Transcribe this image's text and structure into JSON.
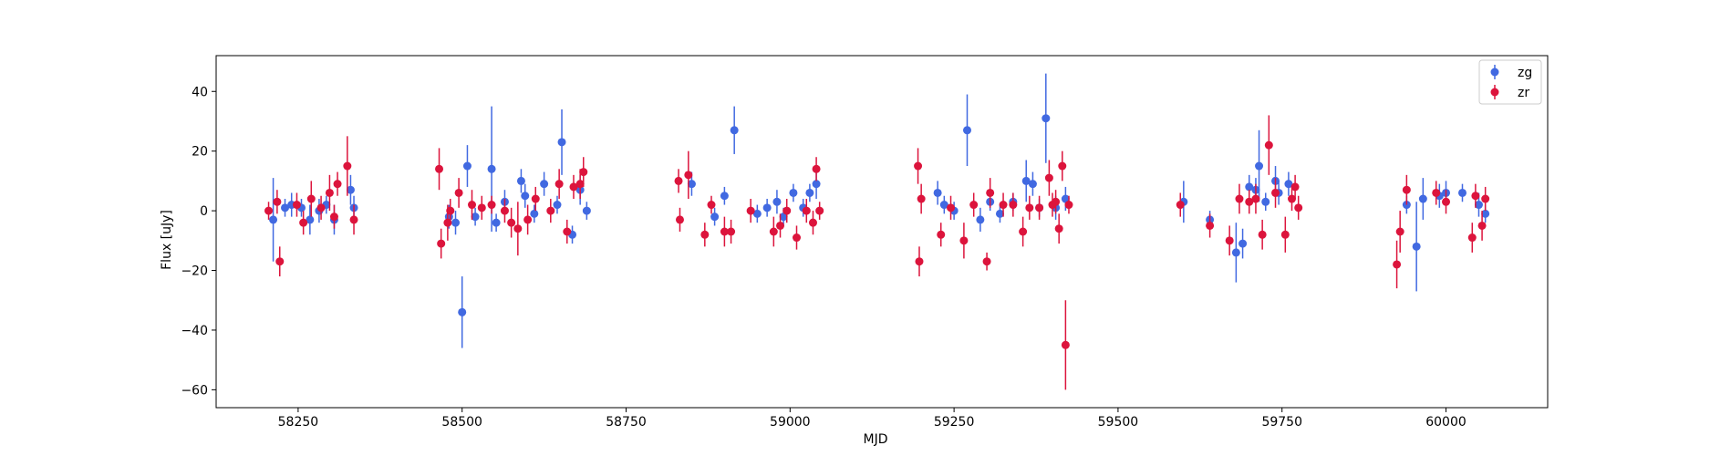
{
  "chart_data": {
    "type": "scatter",
    "title": "",
    "xlabel": "MJD",
    "ylabel": "Flux [uJy]",
    "xlim": [
      58125,
      60155
    ],
    "ylim": [
      -66,
      52
    ],
    "xticks": [
      58250,
      58500,
      58750,
      59000,
      59250,
      59500,
      59750,
      60000
    ],
    "yticks": [
      -60,
      -40,
      -20,
      0,
      20,
      40
    ],
    "grid": false,
    "legend_position": "top-right",
    "series": [
      {
        "name": "zg",
        "color": "#4169e1",
        "x": [
          58212,
          58230,
          58240,
          58255,
          58268,
          58282,
          58293,
          58305,
          58330,
          58335,
          58480,
          58490,
          58500,
          58508,
          58520,
          58545,
          58552,
          58565,
          58590,
          58596,
          58610,
          58625,
          58645,
          58652,
          58668,
          58680,
          58690,
          58850,
          58885,
          58900,
          58915,
          58950,
          58965,
          58980,
          58990,
          59005,
          59020,
          59030,
          59040,
          59225,
          59235,
          59250,
          59270,
          59290,
          59305,
          59320,
          59340,
          59360,
          59370,
          59380,
          59390,
          59405,
          59420,
          59600,
          59640,
          59680,
          59690,
          59700,
          59710,
          59715,
          59725,
          59740,
          59745,
          59760,
          59940,
          59955,
          59965,
          59990,
          60000,
          60025,
          60050,
          60060
        ],
        "y": [
          -3,
          1,
          2,
          1,
          -3,
          0,
          2,
          -3,
          7,
          1,
          -2,
          -4,
          -34,
          15,
          -2,
          14,
          -4,
          3,
          10,
          5,
          -1,
          9,
          2,
          23,
          -8,
          7,
          0,
          9,
          -2,
          5,
          27,
          -1,
          1,
          3,
          -2,
          6,
          1,
          6,
          9,
          6,
          2,
          0,
          27,
          -3,
          3,
          -1,
          3,
          10,
          9,
          1,
          31,
          1,
          4,
          3,
          -3,
          -14,
          -11,
          8,
          7,
          15,
          3,
          10,
          6,
          9,
          2,
          -12,
          4,
          5,
          6,
          6,
          2,
          -1
        ],
        "err": [
          14,
          3,
          4,
          3,
          5,
          4,
          3,
          5,
          5,
          4,
          4,
          4,
          12,
          7,
          3,
          21,
          3,
          4,
          4,
          4,
          3,
          4,
          3,
          11,
          3,
          5,
          3,
          4,
          3,
          3,
          8,
          3,
          3,
          4,
          3,
          3,
          3,
          3,
          5,
          4,
          3,
          3,
          12,
          4,
          3,
          3,
          3,
          7,
          4,
          3,
          15,
          4,
          4,
          7,
          3,
          10,
          5,
          4,
          4,
          12,
          3,
          5,
          4,
          4,
          3,
          15,
          7,
          4,
          4,
          3,
          4,
          3
        ]
      },
      {
        "name": "zr",
        "color": "#dc143c",
        "x": [
          58205,
          58218,
          58222,
          58248,
          58258,
          58270,
          58285,
          58298,
          58305,
          58310,
          58325,
          58335,
          58465,
          58468,
          58478,
          58482,
          58495,
          58515,
          58530,
          58545,
          58565,
          58575,
          58585,
          58600,
          58612,
          58635,
          58648,
          58660,
          58670,
          58680,
          58685,
          58830,
          58832,
          58845,
          58870,
          58880,
          58900,
          58910,
          58940,
          58975,
          58985,
          58995,
          59010,
          59025,
          59035,
          59040,
          59045,
          59195,
          59197,
          59200,
          59230,
          59245,
          59265,
          59280,
          59300,
          59305,
          59325,
          59340,
          59355,
          59365,
          59380,
          59395,
          59400,
          59405,
          59410,
          59415,
          59420,
          59425,
          59595,
          59640,
          59670,
          59685,
          59700,
          59710,
          59720,
          59730,
          59740,
          59755,
          59765,
          59770,
          59775,
          59925,
          59930,
          59940,
          59985,
          60000,
          60040,
          60045,
          60055,
          60060
        ],
        "y": [
          0,
          3,
          -17,
          2,
          -4,
          4,
          1,
          6,
          -2,
          9,
          15,
          -3,
          14,
          -11,
          -4,
          0,
          6,
          2,
          1,
          2,
          0,
          -4,
          -6,
          -3,
          4,
          0,
          9,
          -7,
          8,
          9,
          13,
          10,
          -3,
          12,
          -8,
          2,
          -7,
          -7,
          0,
          -7,
          -5,
          0,
          -9,
          0,
          -4,
          14,
          0,
          15,
          -17,
          4,
          -8,
          1,
          -10,
          2,
          -17,
          6,
          2,
          2,
          -7,
          1,
          1,
          11,
          2,
          3,
          -6,
          15,
          -45,
          2,
          2,
          -5,
          -10,
          4,
          3,
          4,
          -8,
          22,
          6,
          -8,
          4,
          8,
          1,
          -18,
          -7,
          7,
          6,
          3,
          -9,
          5,
          -5,
          4
        ],
        "err": [
          3,
          4,
          5,
          4,
          4,
          6,
          4,
          6,
          4,
          4,
          10,
          5,
          7,
          5,
          6,
          4,
          5,
          5,
          4,
          3,
          4,
          5,
          9,
          5,
          4,
          4,
          5,
          4,
          4,
          5,
          5,
          4,
          4,
          8,
          4,
          3,
          5,
          4,
          4,
          5,
          4,
          4,
          4,
          4,
          4,
          4,
          3,
          6,
          5,
          5,
          4,
          4,
          6,
          4,
          3,
          5,
          4,
          4,
          5,
          4,
          4,
          6,
          4,
          4,
          5,
          5,
          15,
          3,
          4,
          4,
          5,
          5,
          4,
          5,
          5,
          10,
          5,
          6,
          4,
          4,
          4,
          8,
          7,
          5,
          4,
          4,
          5,
          4,
          5,
          4
        ]
      }
    ]
  }
}
